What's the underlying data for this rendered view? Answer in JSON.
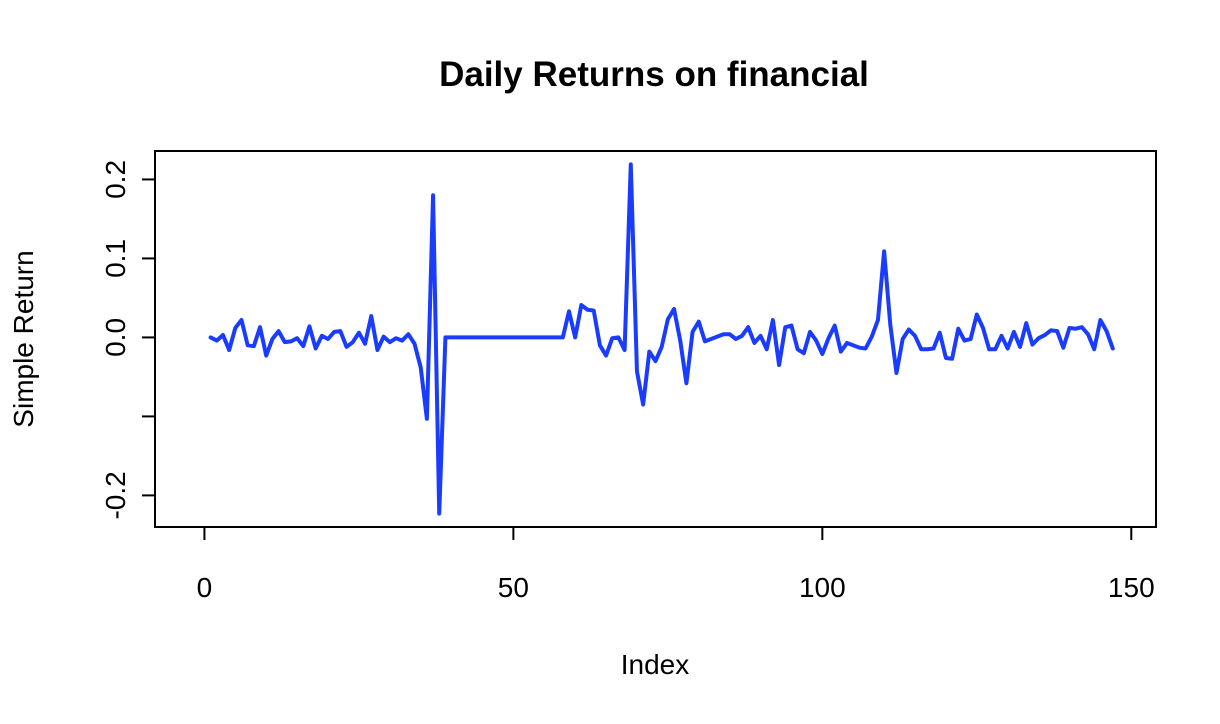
{
  "chart_data": {
    "type": "line",
    "title": "Daily Returns on financial",
    "xlabel": "Index",
    "ylabel": "Simple Return",
    "xlim": [
      -8,
      154
    ],
    "ylim": [
      -0.24,
      0.236
    ],
    "x_ticks": [
      {
        "value": 0,
        "label": "0"
      },
      {
        "value": 50,
        "label": "50"
      },
      {
        "value": 100,
        "label": "100"
      },
      {
        "value": 150,
        "label": "150"
      }
    ],
    "y_ticks": [
      {
        "value": -0.2,
        "label": "-0.2"
      },
      {
        "value": -0.1,
        "label": ""
      },
      {
        "value": 0.0,
        "label": "0.0"
      },
      {
        "value": 0.1,
        "label": "0.1"
      },
      {
        "value": 0.2,
        "label": "0.2"
      }
    ],
    "grid": false,
    "line_color": "#1a3cff",
    "series": [
      {
        "x": [
          1,
          2,
          3,
          4,
          5,
          6,
          7,
          8,
          9,
          10,
          11,
          12,
          13,
          14,
          15,
          16,
          17,
          18,
          19,
          20,
          21,
          22,
          23,
          24,
          25,
          26,
          27,
          28,
          29,
          30,
          31,
          32,
          33,
          34,
          35,
          36,
          37,
          38,
          39,
          40,
          41,
          42,
          43,
          44,
          45,
          46,
          47,
          48,
          49,
          50,
          51,
          52,
          53,
          54,
          55,
          56,
          57,
          58,
          59,
          60,
          61,
          62,
          63,
          64,
          65,
          66,
          67,
          68,
          69,
          70,
          71,
          72,
          73,
          74,
          75,
          76,
          77,
          78,
          79,
          80,
          81,
          82,
          83,
          84,
          85,
          86,
          87,
          88,
          89,
          90,
          91,
          92,
          93,
          94,
          95,
          96,
          97,
          98,
          99,
          100,
          101,
          102,
          103,
          104,
          105,
          106,
          107,
          108,
          109,
          110,
          111,
          112,
          113,
          114,
          115,
          116,
          117,
          118,
          119,
          120,
          121,
          122,
          123,
          124,
          125,
          126,
          127,
          128,
          129,
          130,
          131,
          132,
          133,
          134,
          135,
          136,
          137,
          138,
          139,
          140,
          141,
          142,
          143,
          144,
          145,
          146,
          147
        ],
        "values": [
          0.0,
          -0.004,
          0.003,
          -0.016,
          0.012,
          0.022,
          -0.01,
          -0.011,
          0.013,
          -0.023,
          -0.002,
          0.008,
          -0.006,
          -0.005,
          -0.001,
          -0.011,
          0.014,
          -0.014,
          0.002,
          -0.002,
          0.007,
          0.008,
          -0.012,
          -0.006,
          0.006,
          -0.008,
          0.027,
          -0.016,
          0.001,
          -0.006,
          -0.001,
          -0.004,
          0.004,
          -0.008,
          -0.038,
          -0.103,
          0.18,
          -0.223,
          0.0,
          0.0,
          0.0,
          0.0,
          0.0,
          0.0,
          0.0,
          0.0,
          0.0,
          0.0,
          0.0,
          0.0,
          0.0,
          0.0,
          0.0,
          0.0,
          0.0,
          0.0,
          0.0,
          0.0,
          0.033,
          0.0,
          0.041,
          0.035,
          0.034,
          -0.01,
          -0.023,
          -0.001,
          0.0,
          -0.016,
          0.219,
          -0.043,
          -0.085,
          -0.018,
          -0.03,
          -0.012,
          0.023,
          0.036,
          -0.004,
          -0.058,
          0.007,
          0.02,
          -0.005,
          -0.002,
          0.001,
          0.004,
          0.004,
          -0.002,
          0.002,
          0.013,
          -0.007,
          0.002,
          -0.015,
          0.022,
          -0.035,
          0.013,
          0.015,
          -0.015,
          -0.02,
          0.007,
          -0.004,
          -0.021,
          -0.001,
          0.015,
          -0.018,
          -0.007,
          -0.01,
          -0.013,
          -0.014,
          0.001,
          0.022,
          0.109,
          0.016,
          -0.045,
          -0.002,
          0.01,
          0.002,
          -0.015,
          -0.015,
          -0.014,
          0.006,
          -0.026,
          -0.027,
          0.011,
          -0.004,
          -0.002,
          0.029,
          0.012,
          -0.015,
          -0.015,
          0.002,
          -0.014,
          0.007,
          -0.012,
          0.018,
          -0.009,
          -0.001,
          0.003,
          0.009,
          0.008,
          -0.013,
          0.012,
          0.011,
          0.013,
          0.004,
          -0.015,
          0.022,
          0.008,
          -0.014
        ]
      }
    ]
  }
}
